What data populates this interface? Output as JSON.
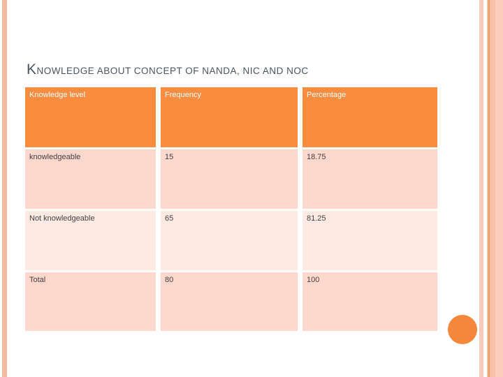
{
  "slide": {
    "title": "KNOWLEDGE ABOUT CONCEPT OF NANDA, NIC AND NOC",
    "title_color": "#4A545E",
    "background_color": "#FFFFFF"
  },
  "table": {
    "columns": [
      "Knowledge level",
      "Frequency",
      "Percentage"
    ],
    "rows": [
      {
        "cells": [
          "knowledgeable",
          "15",
          "18.75"
        ]
      },
      {
        "cells": [
          "Not knowledgeable",
          "65",
          "81.25"
        ]
      },
      {
        "cells": [
          "Total",
          "80",
          "100"
        ]
      }
    ],
    "header_bg": "#F98C3E",
    "header_text_color": "#FFFFFF",
    "row_band_dark": "#FED8CC",
    "row_band_light": "#FEEAE3",
    "body_text_color": "#3F3F3F"
  },
  "chart_data": {
    "type": "table",
    "title": "Knowledge about concept of NANDA, NIC and NOC",
    "categories": [
      "knowledgeable",
      "Not knowledgeable",
      "Total"
    ],
    "series": [
      {
        "name": "Frequency",
        "values": [
          15,
          65,
          80
        ]
      },
      {
        "name": "Percentage",
        "values": [
          18.75,
          81.25,
          100
        ]
      }
    ]
  },
  "decorations": {
    "left_bar_color": "#F4B8A2",
    "right_stripe_colors": [
      "#FACDBB",
      "#F6C0A6",
      "#E99B64",
      "#F7C1A9",
      "#FACDBE"
    ],
    "circle_color": "#F5873C"
  }
}
